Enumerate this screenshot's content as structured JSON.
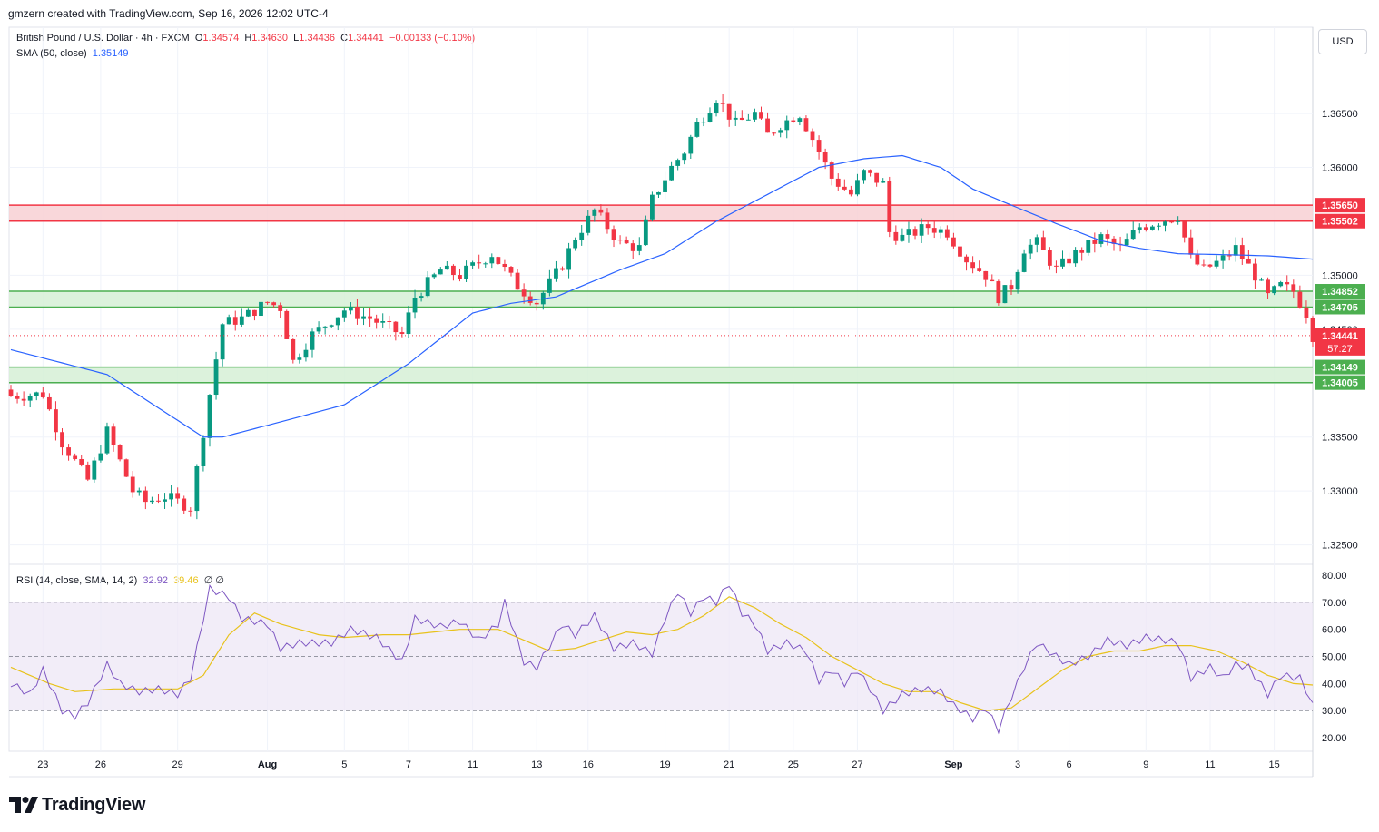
{
  "header": {
    "credit": "gmzern created with TradingView.com, Sep 16, 2026 12:02 UTC-4"
  },
  "legend": {
    "symbol": "British Pound / U.S. Dollar · 4h · FXCM",
    "o_label": "O",
    "o": "1.34574",
    "h_label": "H",
    "h": "1.34630",
    "l_label": "L",
    "l": "1.34436",
    "c_label": "C",
    "c": "1.34441",
    "change": "−0.00133 (−0.10%)",
    "sma_label": "SMA (50, close)",
    "sma_value": "1.35149",
    "rsi_label": "RSI (14, close, SMA, 14, 2)",
    "rsi_value": "32.92",
    "rsi_sma_value": "39.46",
    "rsi_extra": "∅ ∅"
  },
  "currency": "USD",
  "brand": {
    "name": "TradingView",
    "icon": "tradingview-logo-icon"
  },
  "colors": {
    "up": "#089981",
    "down": "#f23645",
    "sma": "#2962ff",
    "rsi": "#7e57c2",
    "rsi_sma": "#e8c21c",
    "resistance_fill": "#f8d0d4",
    "support_fill": "#d6f0d6",
    "zone_red": "#f23645",
    "zone_green": "#4caf50"
  },
  "chart_data": {
    "type": "candlestick",
    "price_axis": {
      "ylim": [
        1.3232,
        1.373
      ],
      "ticks": [
        "1.32500",
        "1.33000",
        "1.33500",
        "1.34000",
        "1.34500",
        "1.35000",
        "1.35500",
        "1.36000",
        "1.36500"
      ]
    },
    "x_ticks": [
      {
        "label": "23",
        "index": 5
      },
      {
        "label": "26",
        "index": 14
      },
      {
        "label": "29",
        "index": 26
      },
      {
        "label": "Aug",
        "index": 40
      },
      {
        "label": "5",
        "index": 52
      },
      {
        "label": "7",
        "index": 62
      },
      {
        "label": "11",
        "index": 72
      },
      {
        "label": "13",
        "index": 82
      },
      {
        "label": "16",
        "index": 90
      },
      {
        "label": "19",
        "index": 102
      },
      {
        "label": "21",
        "index": 112
      },
      {
        "label": "25",
        "index": 122
      },
      {
        "label": "27",
        "index": 132
      },
      {
        "label": "Sep",
        "index": 147
      },
      {
        "label": "3",
        "index": 157
      },
      {
        "label": "6",
        "index": 165
      },
      {
        "label": "9",
        "index": 177
      },
      {
        "label": "11",
        "index": 187
      },
      {
        "label": "15",
        "index": 197
      }
    ],
    "zones": [
      {
        "type": "resistance",
        "top": 1.3565,
        "bottom": 1.35502,
        "labels": [
          "1.35650",
          "1.35502"
        ]
      },
      {
        "type": "support",
        "top": 1.34852,
        "bottom": 1.34705,
        "labels": [
          "1.34852",
          "1.34705"
        ]
      },
      {
        "type": "support",
        "top": 1.34149,
        "bottom": 1.34005,
        "labels": [
          "1.34149",
          "1.34005"
        ]
      }
    ],
    "last_price": {
      "value": 1.34441,
      "label": "1.34441",
      "countdown": "57:27"
    },
    "close_path_anchors": [
      [
        0,
        1.3388
      ],
      [
        5,
        1.339
      ],
      [
        8,
        1.3345
      ],
      [
        12,
        1.331
      ],
      [
        15,
        1.3355
      ],
      [
        19,
        1.33
      ],
      [
        21,
        1.329
      ],
      [
        24,
        1.3295
      ],
      [
        28,
        1.3285
      ],
      [
        31,
        1.339
      ],
      [
        33,
        1.3455
      ],
      [
        36,
        1.346
      ],
      [
        40,
        1.3475
      ],
      [
        42,
        1.347
      ],
      [
        44,
        1.342
      ],
      [
        47,
        1.3445
      ],
      [
        52,
        1.3468
      ],
      [
        56,
        1.346
      ],
      [
        61,
        1.3445
      ],
      [
        63,
        1.348
      ],
      [
        67,
        1.3505
      ],
      [
        70,
        1.35
      ],
      [
        75,
        1.352
      ],
      [
        79,
        1.349
      ],
      [
        82,
        1.3475
      ],
      [
        86,
        1.351
      ],
      [
        88,
        1.3535
      ],
      [
        91,
        1.356
      ],
      [
        95,
        1.353
      ],
      [
        98,
        1.3525
      ],
      [
        100,
        1.357
      ],
      [
        103,
        1.36
      ],
      [
        105,
        1.3615
      ],
      [
        107,
        1.364
      ],
      [
        110,
        1.3665
      ],
      [
        113,
        1.364
      ],
      [
        116,
        1.365
      ],
      [
        118,
        1.363
      ],
      [
        120,
        1.364
      ],
      [
        123,
        1.365
      ],
      [
        126,
        1.3615
      ],
      [
        128,
        1.359
      ],
      [
        131,
        1.3575
      ],
      [
        133,
        1.3595
      ],
      [
        136,
        1.3585
      ],
      [
        137,
        1.354
      ],
      [
        139,
        1.3535
      ],
      [
        143,
        1.3545
      ],
      [
        146,
        1.354
      ],
      [
        149,
        1.3515
      ],
      [
        152,
        1.35
      ],
      [
        154,
        1.348
      ],
      [
        156,
        1.349
      ],
      [
        158,
        1.3525
      ],
      [
        160,
        1.353
      ],
      [
        163,
        1.3505
      ],
      [
        166,
        1.352
      ],
      [
        170,
        1.3535
      ],
      [
        173,
        1.3525
      ],
      [
        176,
        1.3545
      ],
      [
        179,
        1.355
      ],
      [
        182,
        1.3555
      ],
      [
        184,
        1.3515
      ],
      [
        186,
        1.3505
      ],
      [
        189,
        1.3515
      ],
      [
        191,
        1.3525
      ],
      [
        194,
        1.35
      ],
      [
        196,
        1.348
      ],
      [
        198,
        1.349
      ],
      [
        200,
        1.3485
      ],
      [
        202,
        1.3465
      ],
      [
        203,
        1.34441
      ]
    ],
    "sma_anchors": [
      [
        0,
        1.3431
      ],
      [
        15,
        1.3408
      ],
      [
        30,
        1.335
      ],
      [
        33,
        1.335
      ],
      [
        42,
        1.3364
      ],
      [
        52,
        1.338
      ],
      [
        62,
        1.3418
      ],
      [
        72,
        1.3465
      ],
      [
        78,
        1.3474
      ],
      [
        85,
        1.348
      ],
      [
        95,
        1.3505
      ],
      [
        102,
        1.352
      ],
      [
        110,
        1.355
      ],
      [
        118,
        1.3575
      ],
      [
        126,
        1.36
      ],
      [
        133,
        1.3608
      ],
      [
        139,
        1.3611
      ],
      [
        145,
        1.36
      ],
      [
        150,
        1.358
      ],
      [
        156,
        1.3565
      ],
      [
        163,
        1.3548
      ],
      [
        170,
        1.3532
      ],
      [
        176,
        1.3525
      ],
      [
        182,
        1.352
      ],
      [
        190,
        1.3519
      ],
      [
        196,
        1.3518
      ],
      [
        203,
        1.3515
      ]
    ],
    "rsi_axis": {
      "ylim": [
        15,
        84
      ],
      "ticks": [
        "20.00",
        "30.00",
        "40.00",
        "50.00",
        "60.00",
        "70.00",
        "80.00"
      ],
      "band": [
        30,
        70
      ],
      "mid": 50
    },
    "rsi_anchors": [
      [
        0,
        40
      ],
      [
        3,
        36
      ],
      [
        5,
        45
      ],
      [
        8,
        30
      ],
      [
        10,
        28
      ],
      [
        12,
        33
      ],
      [
        15,
        47
      ],
      [
        17,
        40
      ],
      [
        20,
        37
      ],
      [
        23,
        38
      ],
      [
        26,
        36
      ],
      [
        28,
        42
      ],
      [
        31,
        75
      ],
      [
        34,
        72
      ],
      [
        36,
        64
      ],
      [
        40,
        62
      ],
      [
        42,
        53
      ],
      [
        45,
        55
      ],
      [
        50,
        55
      ],
      [
        53,
        60
      ],
      [
        57,
        57
      ],
      [
        61,
        48
      ],
      [
        63,
        64
      ],
      [
        67,
        61
      ],
      [
        70,
        63
      ],
      [
        73,
        56
      ],
      [
        76,
        62
      ],
      [
        77,
        70
      ],
      [
        80,
        48
      ],
      [
        82,
        46
      ],
      [
        86,
        62
      ],
      [
        88,
        58
      ],
      [
        91,
        65
      ],
      [
        94,
        53
      ],
      [
        97,
        55
      ],
      [
        100,
        51
      ],
      [
        102,
        64
      ],
      [
        104,
        74
      ],
      [
        106,
        66
      ],
      [
        108,
        72
      ],
      [
        110,
        70
      ],
      [
        112,
        77
      ],
      [
        114,
        66
      ],
      [
        116,
        62
      ],
      [
        118,
        52
      ],
      [
        121,
        55
      ],
      [
        124,
        52
      ],
      [
        126,
        41
      ],
      [
        128,
        45
      ],
      [
        130,
        40
      ],
      [
        132,
        45
      ],
      [
        134,
        38
      ],
      [
        136,
        30
      ],
      [
        139,
        36
      ],
      [
        142,
        38
      ],
      [
        145,
        37
      ],
      [
        147,
        32
      ],
      [
        150,
        27
      ],
      [
        152,
        31
      ],
      [
        154,
        23
      ],
      [
        156,
        35
      ],
      [
        158,
        46
      ],
      [
        160,
        55
      ],
      [
        163,
        50
      ],
      [
        165,
        47
      ],
      [
        168,
        50
      ],
      [
        171,
        56
      ],
      [
        174,
        54
      ],
      [
        177,
        57
      ],
      [
        180,
        56
      ],
      [
        182,
        55
      ],
      [
        184,
        42
      ],
      [
        187,
        46
      ],
      [
        189,
        42
      ],
      [
        191,
        47
      ],
      [
        193,
        46
      ],
      [
        196,
        36
      ],
      [
        198,
        43
      ],
      [
        201,
        42
      ],
      [
        203,
        32.92
      ]
    ],
    "rsi_sma_anchors": [
      [
        0,
        46
      ],
      [
        6,
        40
      ],
      [
        10,
        37
      ],
      [
        16,
        38
      ],
      [
        22,
        38
      ],
      [
        26,
        38
      ],
      [
        30,
        43
      ],
      [
        34,
        58
      ],
      [
        38,
        66
      ],
      [
        42,
        62
      ],
      [
        48,
        58
      ],
      [
        52,
        57
      ],
      [
        58,
        58
      ],
      [
        62,
        58
      ],
      [
        70,
        60
      ],
      [
        76,
        60
      ],
      [
        80,
        56
      ],
      [
        84,
        52
      ],
      [
        88,
        53
      ],
      [
        92,
        56
      ],
      [
        96,
        59
      ],
      [
        100,
        58
      ],
      [
        104,
        60
      ],
      [
        108,
        65
      ],
      [
        112,
        72
      ],
      [
        116,
        68
      ],
      [
        120,
        62
      ],
      [
        124,
        57
      ],
      [
        128,
        50
      ],
      [
        132,
        45
      ],
      [
        136,
        40
      ],
      [
        140,
        37
      ],
      [
        144,
        37
      ],
      [
        148,
        33
      ],
      [
        152,
        30
      ],
      [
        156,
        31
      ],
      [
        160,
        38
      ],
      [
        164,
        45
      ],
      [
        168,
        50
      ],
      [
        172,
        52
      ],
      [
        176,
        52
      ],
      [
        180,
        54
      ],
      [
        184,
        54
      ],
      [
        188,
        52
      ],
      [
        192,
        48
      ],
      [
        196,
        43
      ],
      [
        200,
        40
      ],
      [
        203,
        39.46
      ]
    ]
  }
}
